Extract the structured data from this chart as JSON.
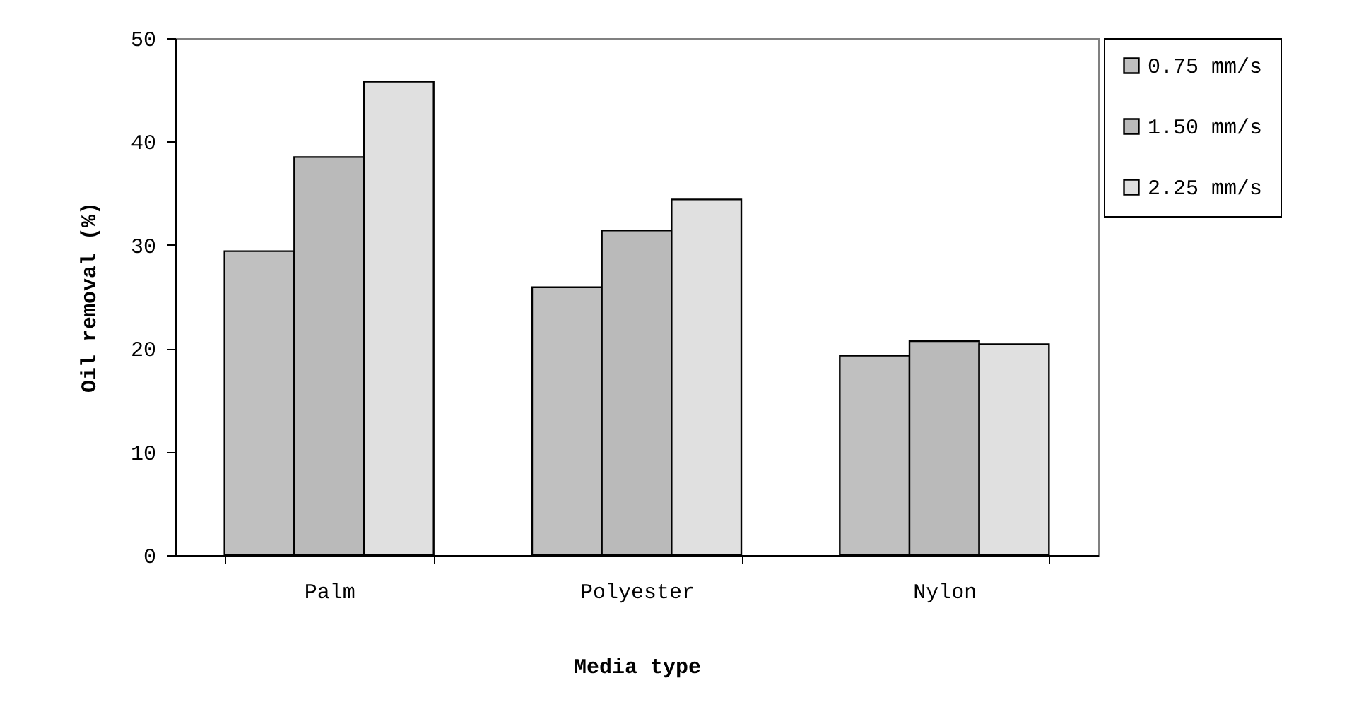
{
  "chart_data": {
    "type": "bar",
    "xlabel": "Media type",
    "ylabel": "Oil removal (%)",
    "categories": [
      "Palm",
      "Polyester",
      "Nylon"
    ],
    "series": [
      {
        "name": "0.75 mm/s",
        "color": "#c0c0c0",
        "values": [
          29.4,
          25.9,
          19.3
        ]
      },
      {
        "name": "1.50 mm/s",
        "color": "#bababa",
        "values": [
          38.5,
          31.4,
          20.7
        ]
      },
      {
        "name": "2.25 mm/s",
        "color": "#e0e0e0",
        "values": [
          45.8,
          34.4,
          20.4
        ]
      }
    ],
    "ylim": [
      0,
      50
    ],
    "yticks": [
      0,
      10,
      20,
      30,
      40,
      50
    ],
    "grid": false,
    "legend": "right"
  }
}
